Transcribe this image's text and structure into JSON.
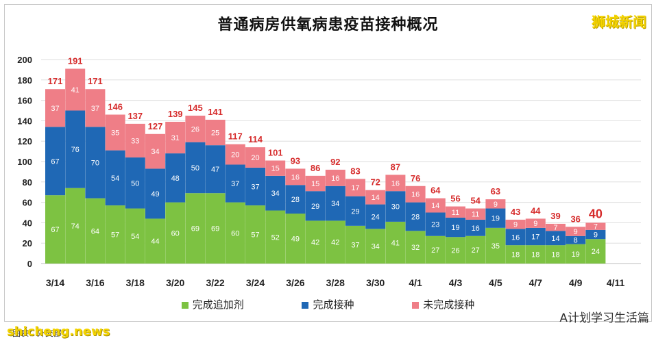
{
  "logo_text": "狮城新闻",
  "watermark_text": "shicheng.news",
  "source_note": "图表：外交部",
  "account_name": "A计划学习生活篇",
  "colors": {
    "boosted": "#7dc242",
    "completed": "#1f68b5",
    "incomplete": "#ef7e87",
    "total_label": "#d62b2b",
    "segment_label": "#ffffff"
  },
  "chart_data": {
    "type": "bar",
    "stacked": true,
    "title": "普通病房供氧病患疫苗接种概况",
    "xlabel": "",
    "ylabel": "",
    "ylim": [
      0,
      200
    ],
    "yticks": [
      0,
      20,
      40,
      60,
      80,
      100,
      120,
      140,
      160,
      180,
      200
    ],
    "grid": true,
    "legend_position": "bottom",
    "x_tick_labels": [
      "3/14",
      "3/16",
      "3/18",
      "3/20",
      "3/22",
      "3/24",
      "3/26",
      "3/28",
      "3/30",
      "4/1",
      "4/3",
      "4/5",
      "4/7",
      "4/9",
      "4/11"
    ],
    "categories": [
      "3/14",
      "3/15",
      "3/16",
      "3/17",
      "3/18",
      "3/19",
      "3/20",
      "3/21",
      "3/22",
      "3/23",
      "3/24",
      "3/25",
      "3/26",
      "3/27",
      "3/28",
      "3/29",
      "3/30",
      "3/31",
      "4/1",
      "4/2",
      "4/3",
      "4/4",
      "4/5",
      "4/6",
      "4/7",
      "4/8",
      "4/9",
      "4/10"
    ],
    "series": [
      {
        "name": "完成追加剂",
        "values": [
          67,
          74,
          64,
          57,
          54,
          44,
          60,
          69,
          69,
          60,
          57,
          52,
          49,
          42,
          42,
          37,
          34,
          41,
          32,
          27,
          26,
          27,
          35,
          18,
          18,
          18,
          19,
          24
        ]
      },
      {
        "name": "完成接种",
        "values": [
          67,
          76,
          70,
          54,
          50,
          49,
          48,
          50,
          47,
          37,
          37,
          34,
          28,
          29,
          34,
          29,
          24,
          30,
          28,
          23,
          19,
          16,
          19,
          16,
          17,
          14,
          8,
          9
        ]
      },
      {
        "name": "未完成接种",
        "values": [
          37,
          41,
          37,
          35,
          33,
          34,
          31,
          26,
          25,
          20,
          20,
          15,
          16,
          15,
          16,
          17,
          14,
          16,
          16,
          14,
          11,
          11,
          9,
          9,
          9,
          7,
          9,
          7
        ]
      }
    ],
    "totals": [
      171,
      191,
      171,
      146,
      137,
      127,
      139,
      145,
      141,
      117,
      114,
      101,
      93,
      86,
      92,
      83,
      72,
      87,
      76,
      64,
      56,
      54,
      63,
      43,
      44,
      39,
      36,
      40
    ]
  }
}
